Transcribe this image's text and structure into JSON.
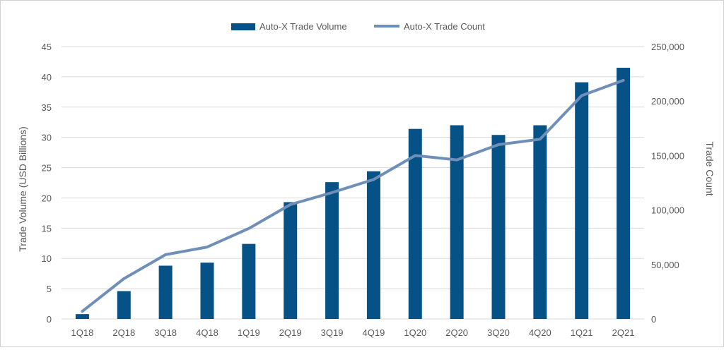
{
  "chart_data": {
    "type": "bar",
    "categories": [
      "1Q18",
      "2Q18",
      "3Q18",
      "4Q18",
      "1Q19",
      "2Q19",
      "3Q19",
      "4Q19",
      "1Q20",
      "2Q20",
      "3Q20",
      "4Q20",
      "1Q21",
      "2Q21"
    ],
    "series": [
      {
        "name": "Auto-X Trade Volume",
        "type": "bar",
        "axis": "left",
        "color": "#065185",
        "values": [
          0.8,
          4.6,
          8.8,
          9.3,
          12.4,
          19.3,
          22.6,
          24.4,
          31.4,
          32.0,
          30.4,
          32.0,
          39.1,
          41.5
        ]
      },
      {
        "name": "Auto-X Trade Count",
        "type": "line",
        "axis": "right",
        "color": "#6f8fb8",
        "values": [
          7000,
          37000,
          59000,
          66000,
          83000,
          105000,
          116000,
          128000,
          150000,
          146000,
          160000,
          165000,
          205000,
          219000
        ]
      }
    ],
    "ylabel": "Trade Volume (USD Billions)",
    "y2label": "Trade Count",
    "ylim": [
      0,
      45
    ],
    "y2lim": [
      0,
      250000
    ],
    "yticks": [
      "0",
      "5",
      "10",
      "15",
      "20",
      "25",
      "30",
      "35",
      "40",
      "45"
    ],
    "y2ticks": [
      "0",
      "50,000",
      "100,000",
      "150,000",
      "200,000",
      "250,000"
    ],
    "grid": true,
    "legend": "top-center"
  }
}
